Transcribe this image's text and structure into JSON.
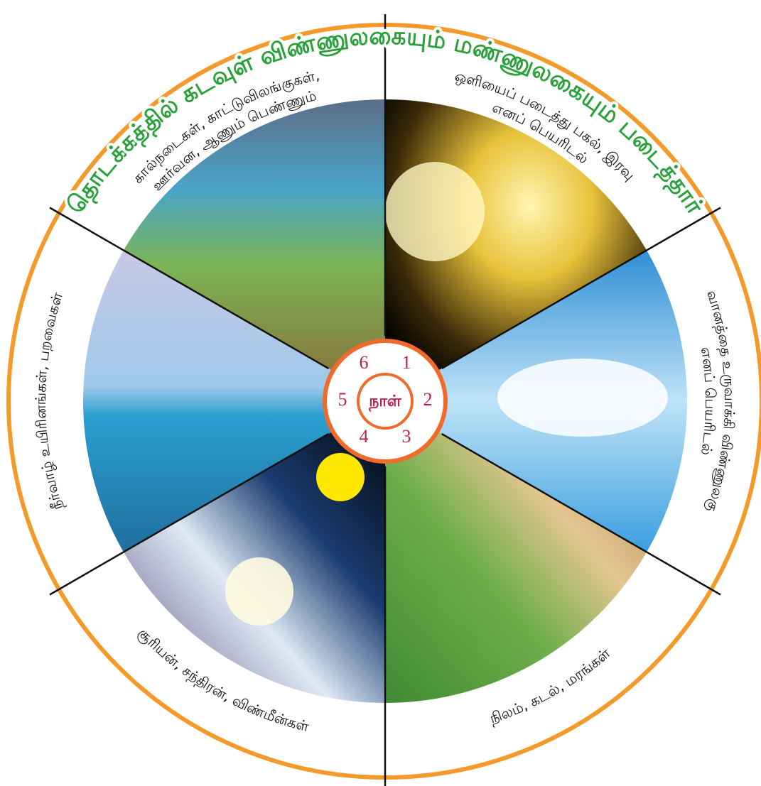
{
  "title": "தொடக்கத்தில் கடவுள் விண்ணுலகையும் மண்ணுலகையும் படைத்தார்",
  "days": [
    {
      "lines": [
        "ஒளியைப் படைத்து பகல், இரவு",
        "எனப் பெயரிடல்"
      ]
    },
    {
      "lines": [
        "வானத்தை உருவாக்கி விண்ணுலகு",
        "எனப் பெயரிடல்"
      ]
    },
    {
      "lines": [
        "நிலம், கடல், மரங்கள்"
      ]
    },
    {
      "lines": [
        "சூரியன், சந்திரன், விண்மீன்கள்"
      ]
    },
    {
      "lines": [
        "நீர்வாழ் உயிரினங்கள், பறவைகள்"
      ]
    },
    {
      "lines": [
        "கால்நடைகள், காட்டுவிலங்குகள்,",
        "ஊர்வன, ஆணும் பெண்ணும்"
      ]
    }
  ],
  "center": {
    "label": "நாள்",
    "numbers": [
      1,
      2,
      3,
      4,
      5,
      6
    ]
  }
}
